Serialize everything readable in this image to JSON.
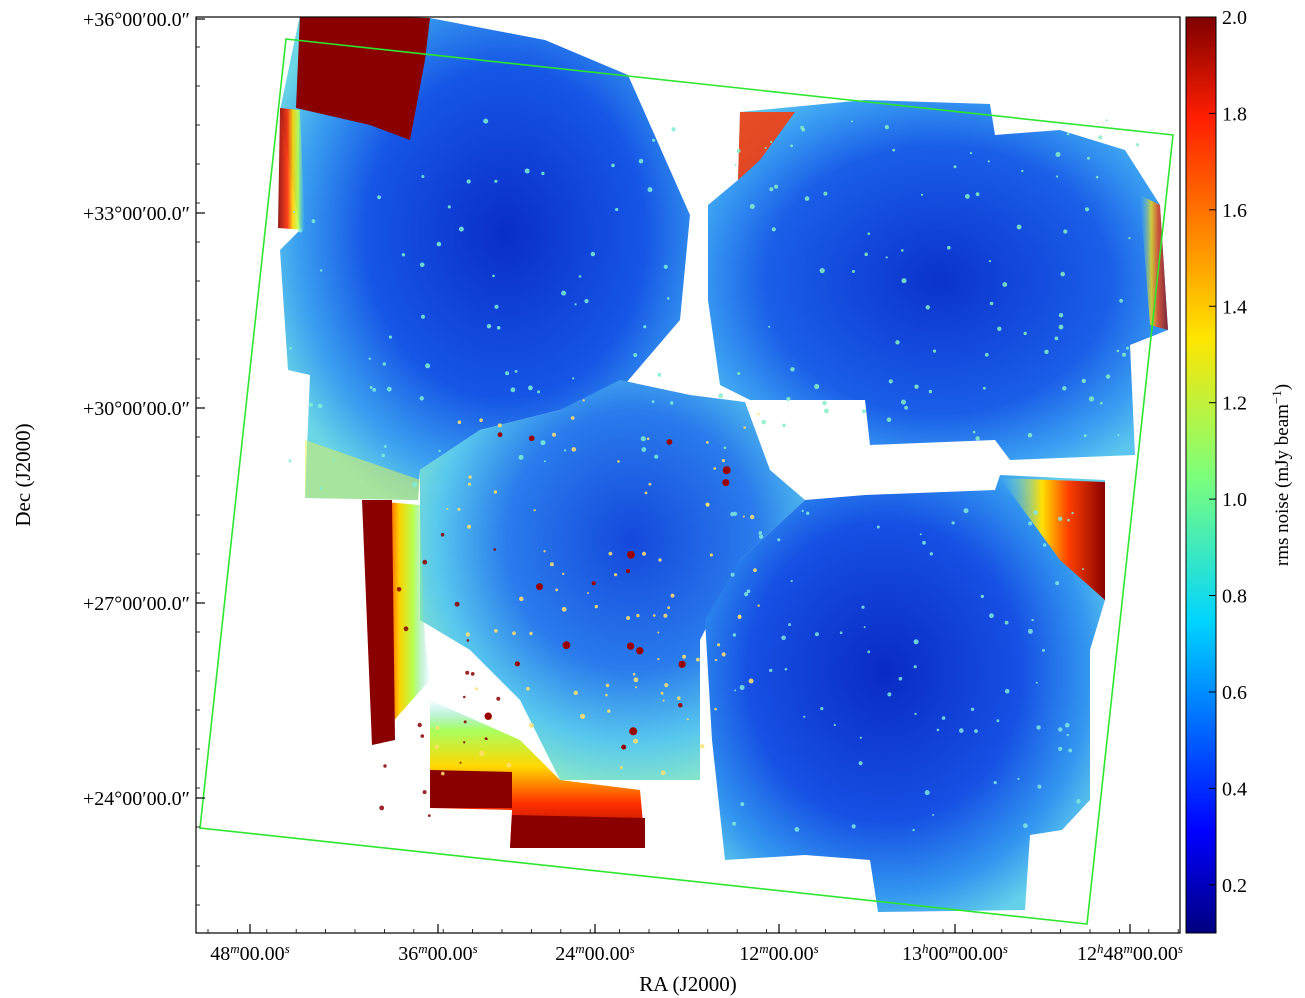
{
  "chart_data": {
    "type": "heatmap",
    "title": "",
    "xlabel": "RA (J2000)",
    "ylabel": "Dec (J2000)",
    "x_ticks": [
      {
        "main": "48",
        "unit1": "m",
        "rest": "00.00",
        "unit2": "s",
        "ra_hours": 13.8
      },
      {
        "main": "36",
        "unit1": "m",
        "rest": "00.00",
        "unit2": "s",
        "ra_hours": 13.6
      },
      {
        "main": "24",
        "unit1": "m",
        "rest": "00.00",
        "unit2": "s",
        "ra_hours": 13.4
      },
      {
        "main": "12",
        "unit1": "m",
        "rest": "00.00",
        "unit2": "s",
        "ra_hours": 13.2
      },
      {
        "main": "13",
        "unit1": "h",
        "rest": "00",
        "unit1b": "m",
        "rest2": "00.00",
        "unit2": "s",
        "ra_hours": 13.0
      },
      {
        "main": "12",
        "unit1": "h",
        "rest": "48",
        "unit1b": "m",
        "rest2": "00.00",
        "unit2": "s",
        "ra_hours": 12.8
      }
    ],
    "y_ticks": [
      {
        "label": "+36°00′00.0″",
        "dec_deg": 36
      },
      {
        "label": "+33°00′00.0″",
        "dec_deg": 33
      },
      {
        "label": "+30°00′00.0″",
        "dec_deg": 30
      },
      {
        "label": "+27°00′00.0″",
        "dec_deg": 27
      },
      {
        "label": "+24°00′00.0″",
        "dec_deg": 24
      }
    ],
    "colorbar": {
      "label": "rms noise (mJy beam",
      "label_exp": "−1",
      "label_close": ")",
      "range": [
        0.1,
        2.0
      ],
      "ticks": [
        "0.2",
        "0.4",
        "0.6",
        "0.8",
        "1.0",
        "1.2",
        "1.4",
        "1.6",
        "1.8",
        "2.0"
      ],
      "tick_values": [
        0.2,
        0.4,
        0.6,
        0.8,
        1.0,
        1.2,
        1.4,
        1.6,
        1.8,
        2.0
      ],
      "colormap": "jet"
    },
    "footprint_color": "#2ee62e",
    "mosaic_blocks": [
      "upper-left",
      "upper-right",
      "center",
      "lower-right",
      "lower-left"
    ]
  }
}
